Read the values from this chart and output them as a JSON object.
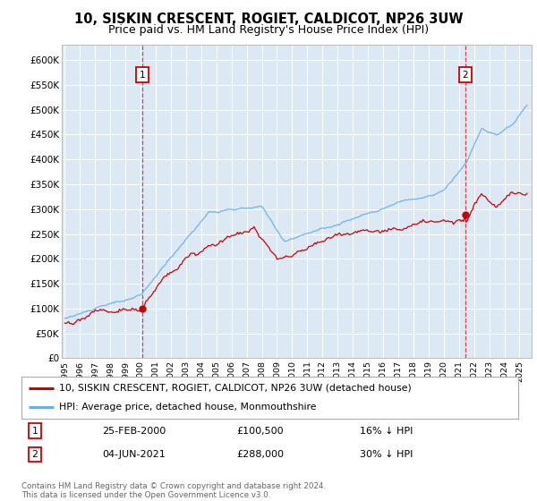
{
  "title": "10, SISKIN CRESCENT, ROGIET, CALDICOT, NP26 3UW",
  "subtitle": "Price paid vs. HM Land Registry's House Price Index (HPI)",
  "title_fontsize": 10.5,
  "subtitle_fontsize": 9,
  "background_color": "#ffffff",
  "plot_bg_color": "#dce9f5",
  "ylabel_ticks": [
    "£0",
    "£50K",
    "£100K",
    "£150K",
    "£200K",
    "£250K",
    "£300K",
    "£350K",
    "£400K",
    "£450K",
    "£500K",
    "£550K",
    "£600K"
  ],
  "ytick_vals": [
    0,
    50000,
    100000,
    150000,
    200000,
    250000,
    300000,
    350000,
    400000,
    450000,
    500000,
    550000,
    600000
  ],
  "ylim": [
    0,
    630000
  ],
  "xlim_start": 1994.8,
  "xlim_end": 2025.8,
  "hpi_color": "#6ab0e8",
  "price_color": "#cc0000",
  "sale1_date": 2000.12,
  "sale1_price": 100500,
  "sale2_date": 2021.42,
  "sale2_price": 288000,
  "legend_line1": "10, SISKIN CRESCENT, ROGIET, CALDICOT, NP26 3UW (detached house)",
  "legend_line2": "HPI: Average price, detached house, Monmouthshire",
  "table_row1_num": "1",
  "table_row1_date": "25-FEB-2000",
  "table_row1_price": "£100,500",
  "table_row1_hpi": "16% ↓ HPI",
  "table_row2_num": "2",
  "table_row2_date": "04-JUN-2021",
  "table_row2_price": "£288,000",
  "table_row2_hpi": "30% ↓ HPI",
  "footer": "Contains HM Land Registry data © Crown copyright and database right 2024.\nThis data is licensed under the Open Government Licence v3.0."
}
